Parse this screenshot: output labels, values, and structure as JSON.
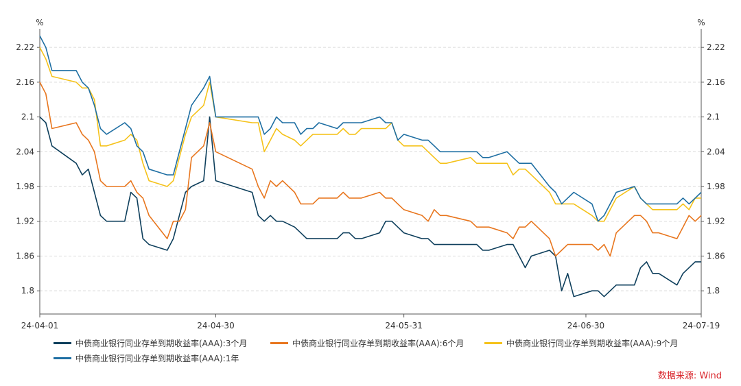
{
  "chart_data": {
    "type": "line",
    "y_unit_left": "%",
    "y_unit_right": "%",
    "ylim": [
      1.76,
      2.245
    ],
    "y_ticks": [
      1.8,
      1.86,
      1.92,
      1.98,
      2.04,
      2.1,
      2.16,
      2.22
    ],
    "y_tick_labels": [
      "1.8",
      "1.86",
      "1.92",
      "1.98",
      "2.04",
      "2.1",
      "2.16",
      "2.22"
    ],
    "x_range": [
      "2024-04-01",
      "2024-07-19"
    ],
    "x_ticks": [
      {
        "date": "2024-04-01",
        "label": "24-04-01"
      },
      {
        "date": "2024-04-30",
        "label": "24-04-30"
      },
      {
        "date": "2024-05-31",
        "label": "24-05-31"
      },
      {
        "date": "2024-06-30",
        "label": "24-06-30"
      },
      {
        "date": "2024-07-19",
        "label": "24-07-19"
      }
    ],
    "grid": true,
    "legend_position": "bottom",
    "x": [
      "2024-04-01",
      "2024-04-02",
      "2024-04-03",
      "2024-04-07",
      "2024-04-08",
      "2024-04-09",
      "2024-04-10",
      "2024-04-11",
      "2024-04-12",
      "2024-04-15",
      "2024-04-16",
      "2024-04-17",
      "2024-04-18",
      "2024-04-19",
      "2024-04-22",
      "2024-04-23",
      "2024-04-24",
      "2024-04-25",
      "2024-04-26",
      "2024-04-28",
      "2024-04-29",
      "2024-04-30",
      "2024-05-06",
      "2024-05-07",
      "2024-05-08",
      "2024-05-09",
      "2024-05-10",
      "2024-05-11",
      "2024-05-13",
      "2024-05-14",
      "2024-05-15",
      "2024-05-16",
      "2024-05-17",
      "2024-05-20",
      "2024-05-21",
      "2024-05-22",
      "2024-05-23",
      "2024-05-24",
      "2024-05-27",
      "2024-05-28",
      "2024-05-29",
      "2024-05-30",
      "2024-05-31",
      "2024-06-03",
      "2024-06-04",
      "2024-06-05",
      "2024-06-06",
      "2024-06-07",
      "2024-06-11",
      "2024-06-12",
      "2024-06-13",
      "2024-06-14",
      "2024-06-17",
      "2024-06-18",
      "2024-06-19",
      "2024-06-20",
      "2024-06-21",
      "2024-06-24",
      "2024-06-25",
      "2024-06-26",
      "2024-06-27",
      "2024-06-28",
      "2024-07-01",
      "2024-07-02",
      "2024-07-03",
      "2024-07-04",
      "2024-07-05",
      "2024-07-08",
      "2024-07-09",
      "2024-07-10",
      "2024-07-11",
      "2024-07-12",
      "2024-07-15",
      "2024-07-16",
      "2024-07-17",
      "2024-07-18",
      "2024-07-19"
    ],
    "series": [
      {
        "name": "中债商业银行同业存单到期收益率(AAA):3个月",
        "color": "#0e3f5c",
        "values": [
          2.1,
          2.09,
          2.05,
          2.02,
          2.0,
          2.01,
          1.97,
          1.93,
          1.92,
          1.92,
          1.97,
          1.96,
          1.89,
          1.88,
          1.87,
          1.89,
          1.93,
          1.97,
          1.98,
          1.99,
          2.1,
          1.99,
          1.97,
          1.93,
          1.92,
          1.93,
          1.92,
          1.92,
          1.91,
          1.9,
          1.89,
          1.89,
          1.89,
          1.89,
          1.9,
          1.9,
          1.89,
          1.89,
          1.9,
          1.92,
          1.92,
          1.91,
          1.9,
          1.89,
          1.89,
          1.88,
          1.88,
          1.88,
          1.88,
          1.88,
          1.87,
          1.87,
          1.88,
          1.88,
          1.86,
          1.84,
          1.86,
          1.87,
          1.86,
          1.8,
          1.83,
          1.79,
          1.8,
          1.8,
          1.79,
          1.8,
          1.81,
          1.81,
          1.84,
          1.85,
          1.83,
          1.83,
          1.81,
          1.83,
          1.84,
          1.85,
          1.85
        ]
      },
      {
        "name": "中债商业银行同业存单到期收益率(AAA):6个月",
        "color": "#e8761e",
        "values": [
          2.16,
          2.14,
          2.08,
          2.09,
          2.07,
          2.06,
          2.04,
          1.99,
          1.98,
          1.98,
          1.99,
          1.97,
          1.96,
          1.93,
          1.89,
          1.92,
          1.92,
          1.94,
          2.03,
          2.05,
          2.09,
          2.04,
          2.01,
          1.98,
          1.96,
          1.99,
          1.98,
          1.99,
          1.97,
          1.95,
          1.95,
          1.95,
          1.96,
          1.96,
          1.97,
          1.96,
          1.96,
          1.96,
          1.97,
          1.96,
          1.96,
          1.95,
          1.94,
          1.93,
          1.92,
          1.94,
          1.93,
          1.93,
          1.92,
          1.91,
          1.91,
          1.91,
          1.9,
          1.89,
          1.91,
          1.91,
          1.92,
          1.89,
          1.86,
          1.87,
          1.88,
          1.88,
          1.88,
          1.87,
          1.88,
          1.86,
          1.9,
          1.93,
          1.93,
          1.92,
          1.9,
          1.9,
          1.89,
          1.91,
          1.93,
          1.92,
          1.93
        ]
      },
      {
        "name": "中债商业银行同业存单到期收益率(AAA):9个月",
        "color": "#f5c21a",
        "values": [
          2.22,
          2.2,
          2.17,
          2.16,
          2.15,
          2.15,
          2.13,
          2.05,
          2.05,
          2.06,
          2.07,
          2.06,
          2.02,
          1.99,
          1.98,
          1.99,
          2.03,
          2.07,
          2.1,
          2.12,
          2.16,
          2.1,
          2.09,
          2.09,
          2.04,
          2.06,
          2.08,
          2.07,
          2.06,
          2.05,
          2.06,
          2.07,
          2.07,
          2.07,
          2.08,
          2.07,
          2.07,
          2.08,
          2.08,
          2.08,
          2.09,
          2.06,
          2.05,
          2.05,
          2.04,
          2.03,
          2.02,
          2.02,
          2.03,
          2.02,
          2.02,
          2.02,
          2.02,
          2.0,
          2.01,
          2.01,
          2.0,
          1.97,
          1.95,
          1.95,
          1.95,
          1.95,
          1.93,
          1.92,
          1.92,
          1.94,
          1.96,
          1.98,
          1.96,
          1.95,
          1.94,
          1.94,
          1.94,
          1.95,
          1.94,
          1.96,
          1.96
        ]
      },
      {
        "name": "中债商业银行同业存单到期收益率(AAA):1年",
        "color": "#1f6fa3",
        "values": [
          2.24,
          2.22,
          2.18,
          2.18,
          2.16,
          2.15,
          2.12,
          2.08,
          2.07,
          2.09,
          2.08,
          2.05,
          2.04,
          2.01,
          2.0,
          2.0,
          2.04,
          2.08,
          2.12,
          2.15,
          2.17,
          2.1,
          2.1,
          2.1,
          2.07,
          2.08,
          2.1,
          2.09,
          2.09,
          2.07,
          2.08,
          2.08,
          2.09,
          2.08,
          2.09,
          2.09,
          2.09,
          2.09,
          2.1,
          2.09,
          2.09,
          2.06,
          2.07,
          2.06,
          2.06,
          2.05,
          2.04,
          2.04,
          2.04,
          2.04,
          2.03,
          2.03,
          2.04,
          2.03,
          2.02,
          2.02,
          2.02,
          1.98,
          1.97,
          1.95,
          1.96,
          1.97,
          1.95,
          1.92,
          1.93,
          1.95,
          1.97,
          1.98,
          1.96,
          1.95,
          1.95,
          1.95,
          1.95,
          1.96,
          1.95,
          1.96,
          1.97
        ]
      }
    ]
  },
  "source_text": "数据来源: Wind"
}
